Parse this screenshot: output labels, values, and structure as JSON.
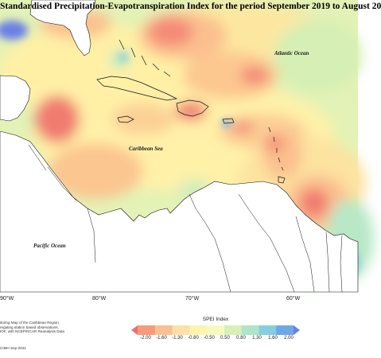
{
  "title": "Standardised Precipitation-Evapotranspiration Index for the period September 2019 to August 20",
  "ocean_labels": {
    "atlantic": "Atlantic Ocean",
    "caribbean": "Caribbean Sea",
    "pacific": "Pacific Ocean"
  },
  "longitude_labels": [
    "90°W",
    "80°W",
    "70°W",
    "60°W"
  ],
  "legend": {
    "title": "SPEI Index",
    "ticks": [
      "-2.00",
      "-1.60",
      "-1.30",
      "-0.80",
      "-0.50",
      "0.50",
      "0.80",
      "1.30",
      "1.60",
      "2.00"
    ],
    "colors": [
      "#f46d6d",
      "#f79a7a",
      "#fbc08f",
      "#fde0a6",
      "#fff3b0",
      "#f6fac0",
      "#d7f0b8",
      "#aee5c8",
      "#86cde0",
      "#6fa8e8",
      "#6a7fe6"
    ]
  },
  "footer": {
    "note_lines": [
      "itoring Map of the Caribbean Region.",
      "regating station based observations,",
      "IOF, with NCEP/NCAR Reanalysis Data"
    ],
    "copyright": "CIMH Sep-2021"
  }
}
